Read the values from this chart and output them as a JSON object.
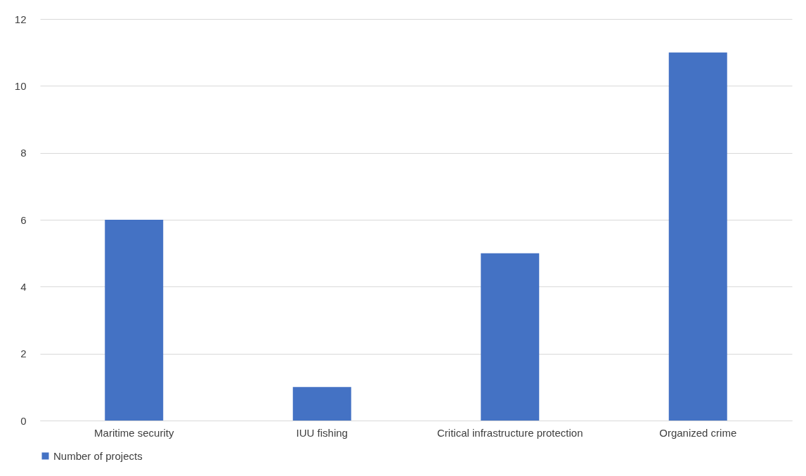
{
  "chart_data": {
    "type": "bar",
    "categories": [
      "Maritime security",
      "IUU fishing",
      "Critical infrastructure protection",
      "Organized crime"
    ],
    "series": [
      {
        "name": "Number of projects",
        "color": "#4472c4",
        "values": [
          6,
          1,
          5,
          11
        ]
      }
    ],
    "ylim": [
      0,
      12
    ],
    "yticks": [
      0,
      2,
      4,
      6,
      8,
      10,
      12
    ],
    "grid": "y",
    "legend": "bottom"
  }
}
